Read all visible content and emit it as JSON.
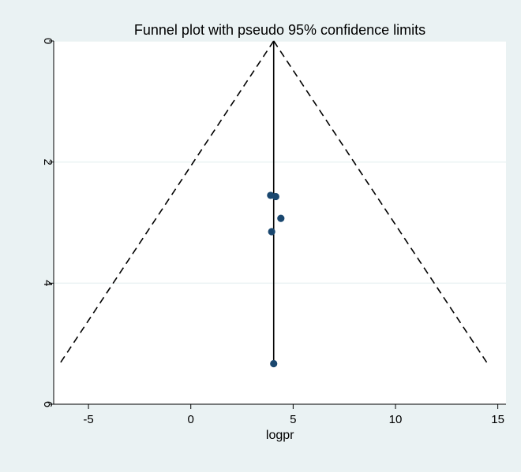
{
  "chart_data": {
    "type": "scatter",
    "title": "Funnel plot with pseudo 95% confidence limits",
    "xlabel": "logpr",
    "ylabel": "",
    "xlim": [
      -6.7,
      15.4
    ],
    "ylim": [
      6.0,
      0.0
    ],
    "y_axis_reversed": true,
    "x_ticks": [
      -5,
      0,
      5,
      10,
      15
    ],
    "y_ticks": [
      0,
      2,
      4,
      6
    ],
    "grid": "horizontal",
    "legend": "none",
    "points": [
      {
        "x": 3.9,
        "y": 2.55
      },
      {
        "x": 4.15,
        "y": 2.57
      },
      {
        "x": 4.4,
        "y": 2.93
      },
      {
        "x": 3.95,
        "y": 3.15
      },
      {
        "x": 4.05,
        "y": 5.33
      }
    ],
    "reference_line": {
      "x": 4.05,
      "y_from": 0,
      "y_to": 5.33
    },
    "confidence_limits": {
      "apex": {
        "x": 4.05,
        "y": 0
      },
      "lower_end": {
        "x": -6.4,
        "y": 5.33
      },
      "upper_end": {
        "x": 14.5,
        "y": 5.33
      }
    },
    "colors": {
      "background": "#eaf2f3",
      "plot_area": "#ffffff",
      "gridline": "#eaf2f3",
      "marker": "#1a476f",
      "line": "#000000"
    }
  }
}
